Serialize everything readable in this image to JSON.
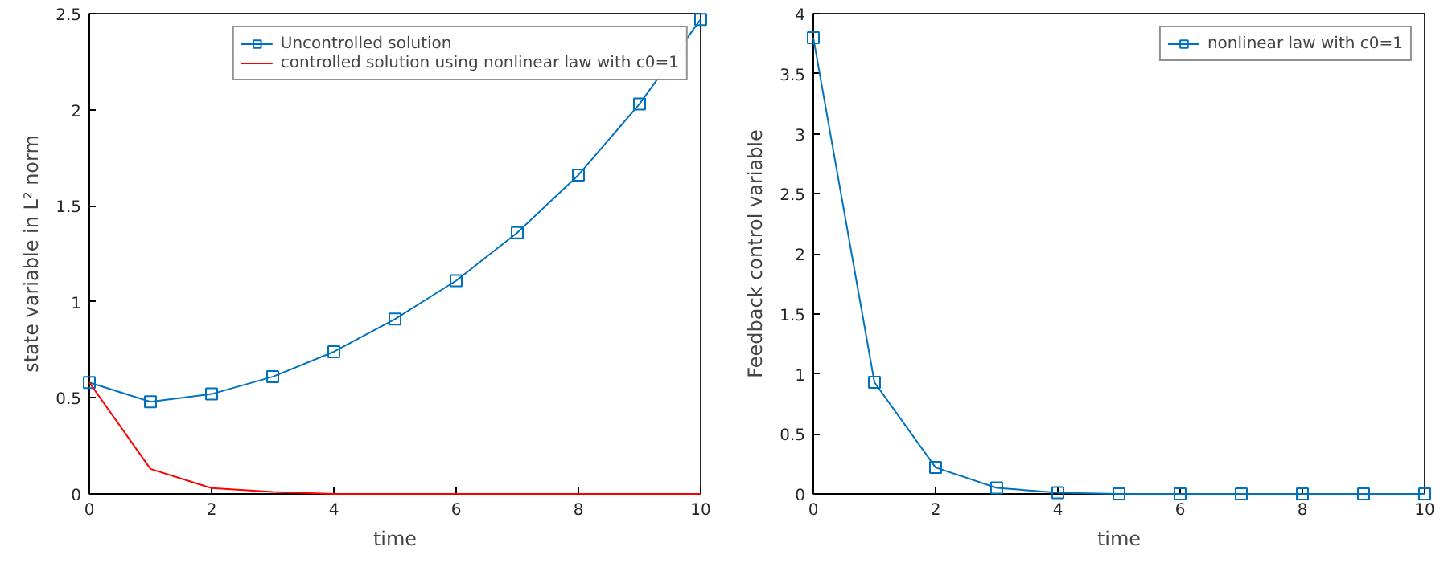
{
  "chart_data": [
    {
      "type": "line",
      "xlabel": "time",
      "ylabel": "state variable in L² norm",
      "x": [
        0,
        1,
        2,
        3,
        4,
        5,
        6,
        7,
        8,
        9,
        10
      ],
      "xlim": [
        0,
        10
      ],
      "xticks": [
        0,
        2,
        4,
        6,
        8,
        10
      ],
      "ylim": [
        0,
        2.5
      ],
      "yticks": [
        0,
        0.5,
        1,
        1.5,
        2,
        2.5
      ],
      "grid": false,
      "legend": "top right",
      "line_style": "solid",
      "series": [
        {
          "name": "Uncontrolled solution",
          "color": "#0072bd",
          "marker": "square",
          "values": [
            0.58,
            0.48,
            0.52,
            0.61,
            0.74,
            0.91,
            1.11,
            1.36,
            1.66,
            2.03,
            2.47
          ]
        },
        {
          "name": "controlled solution using nonlinear law with c0=1",
          "color": "#ff0000",
          "marker": "none",
          "values": [
            0.58,
            0.13,
            0.03,
            0.01,
            0,
            0,
            0,
            0,
            0,
            0,
            0
          ]
        }
      ]
    },
    {
      "type": "line",
      "xlabel": "time",
      "ylabel": "Feedback control variable",
      "x": [
        0,
        1,
        2,
        3,
        4,
        5,
        6,
        7,
        8,
        9,
        10
      ],
      "xlim": [
        0,
        10
      ],
      "xticks": [
        0,
        2,
        4,
        6,
        8,
        10
      ],
      "ylim": [
        0,
        4
      ],
      "yticks": [
        0,
        0.5,
        1,
        1.5,
        2,
        2.5,
        3,
        3.5,
        4
      ],
      "grid": false,
      "legend": "top right",
      "line_style": "solid",
      "series": [
        {
          "name": "nonlinear law with c0=1",
          "color": "#0072bd",
          "marker": "square",
          "values": [
            3.8,
            0.93,
            0.22,
            0.05,
            0.01,
            0,
            0,
            0,
            0,
            0,
            0
          ]
        }
      ]
    }
  ]
}
